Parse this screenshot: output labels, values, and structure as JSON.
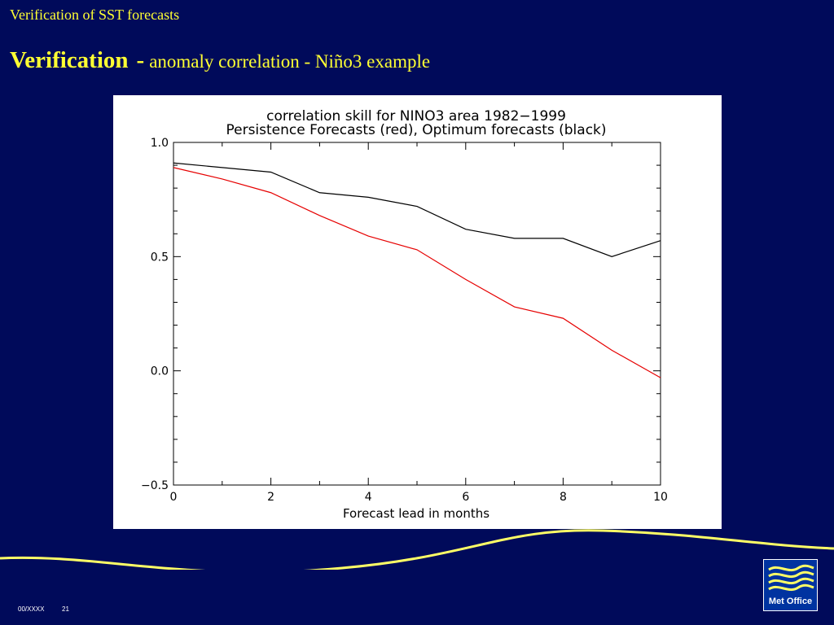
{
  "slide": {
    "header_small": "Verification of SST forecasts",
    "title_bold": "Verification",
    "title_separator": "-",
    "title_rest": "anomaly correlation  - Niño3  example",
    "footer_code": "00/XXXX",
    "footer_page": "21",
    "logo_text": "Met Office",
    "colors": {
      "background": "#000a5a",
      "title": "#ffff33",
      "swoosh": "#ffff66",
      "logo_bg": "#0033a0"
    }
  },
  "chart_data": {
    "type": "line",
    "title": "correlation skill for NINO3 area 1982−1999",
    "subtitle": "Persistence Forecasts (red), Optimum forecasts (black)",
    "xlabel": "Forecast lead in months",
    "ylabel": "",
    "xlim": [
      0,
      10
    ],
    "ylim": [
      -0.5,
      1.0
    ],
    "x_ticks": [
      0,
      2,
      4,
      6,
      8,
      10
    ],
    "x_tick_labels": [
      "0",
      "2",
      "4",
      "6",
      "8",
      "10"
    ],
    "y_ticks": [
      -0.5,
      0.0,
      0.5,
      1.0
    ],
    "y_tick_labels": [
      "−0.5",
      "0.0",
      "0.5",
      "1.0"
    ],
    "grid": false,
    "series": [
      {
        "color": "#000000",
        "x": [
          0,
          1,
          2,
          3,
          4,
          5,
          6,
          7,
          8,
          9,
          10
        ],
        "values": [
          0.91,
          0.89,
          0.87,
          0.78,
          0.76,
          0.72,
          0.62,
          0.58,
          0.58,
          0.5,
          0.57
        ]
      },
      {
        "color": "#e60000",
        "x": [
          0,
          1,
          2,
          3,
          4,
          5,
          6,
          7,
          8,
          9,
          10
        ],
        "values": [
          0.89,
          0.84,
          0.78,
          0.68,
          0.59,
          0.53,
          0.4,
          0.28,
          0.23,
          0.09,
          -0.03
        ]
      }
    ]
  }
}
